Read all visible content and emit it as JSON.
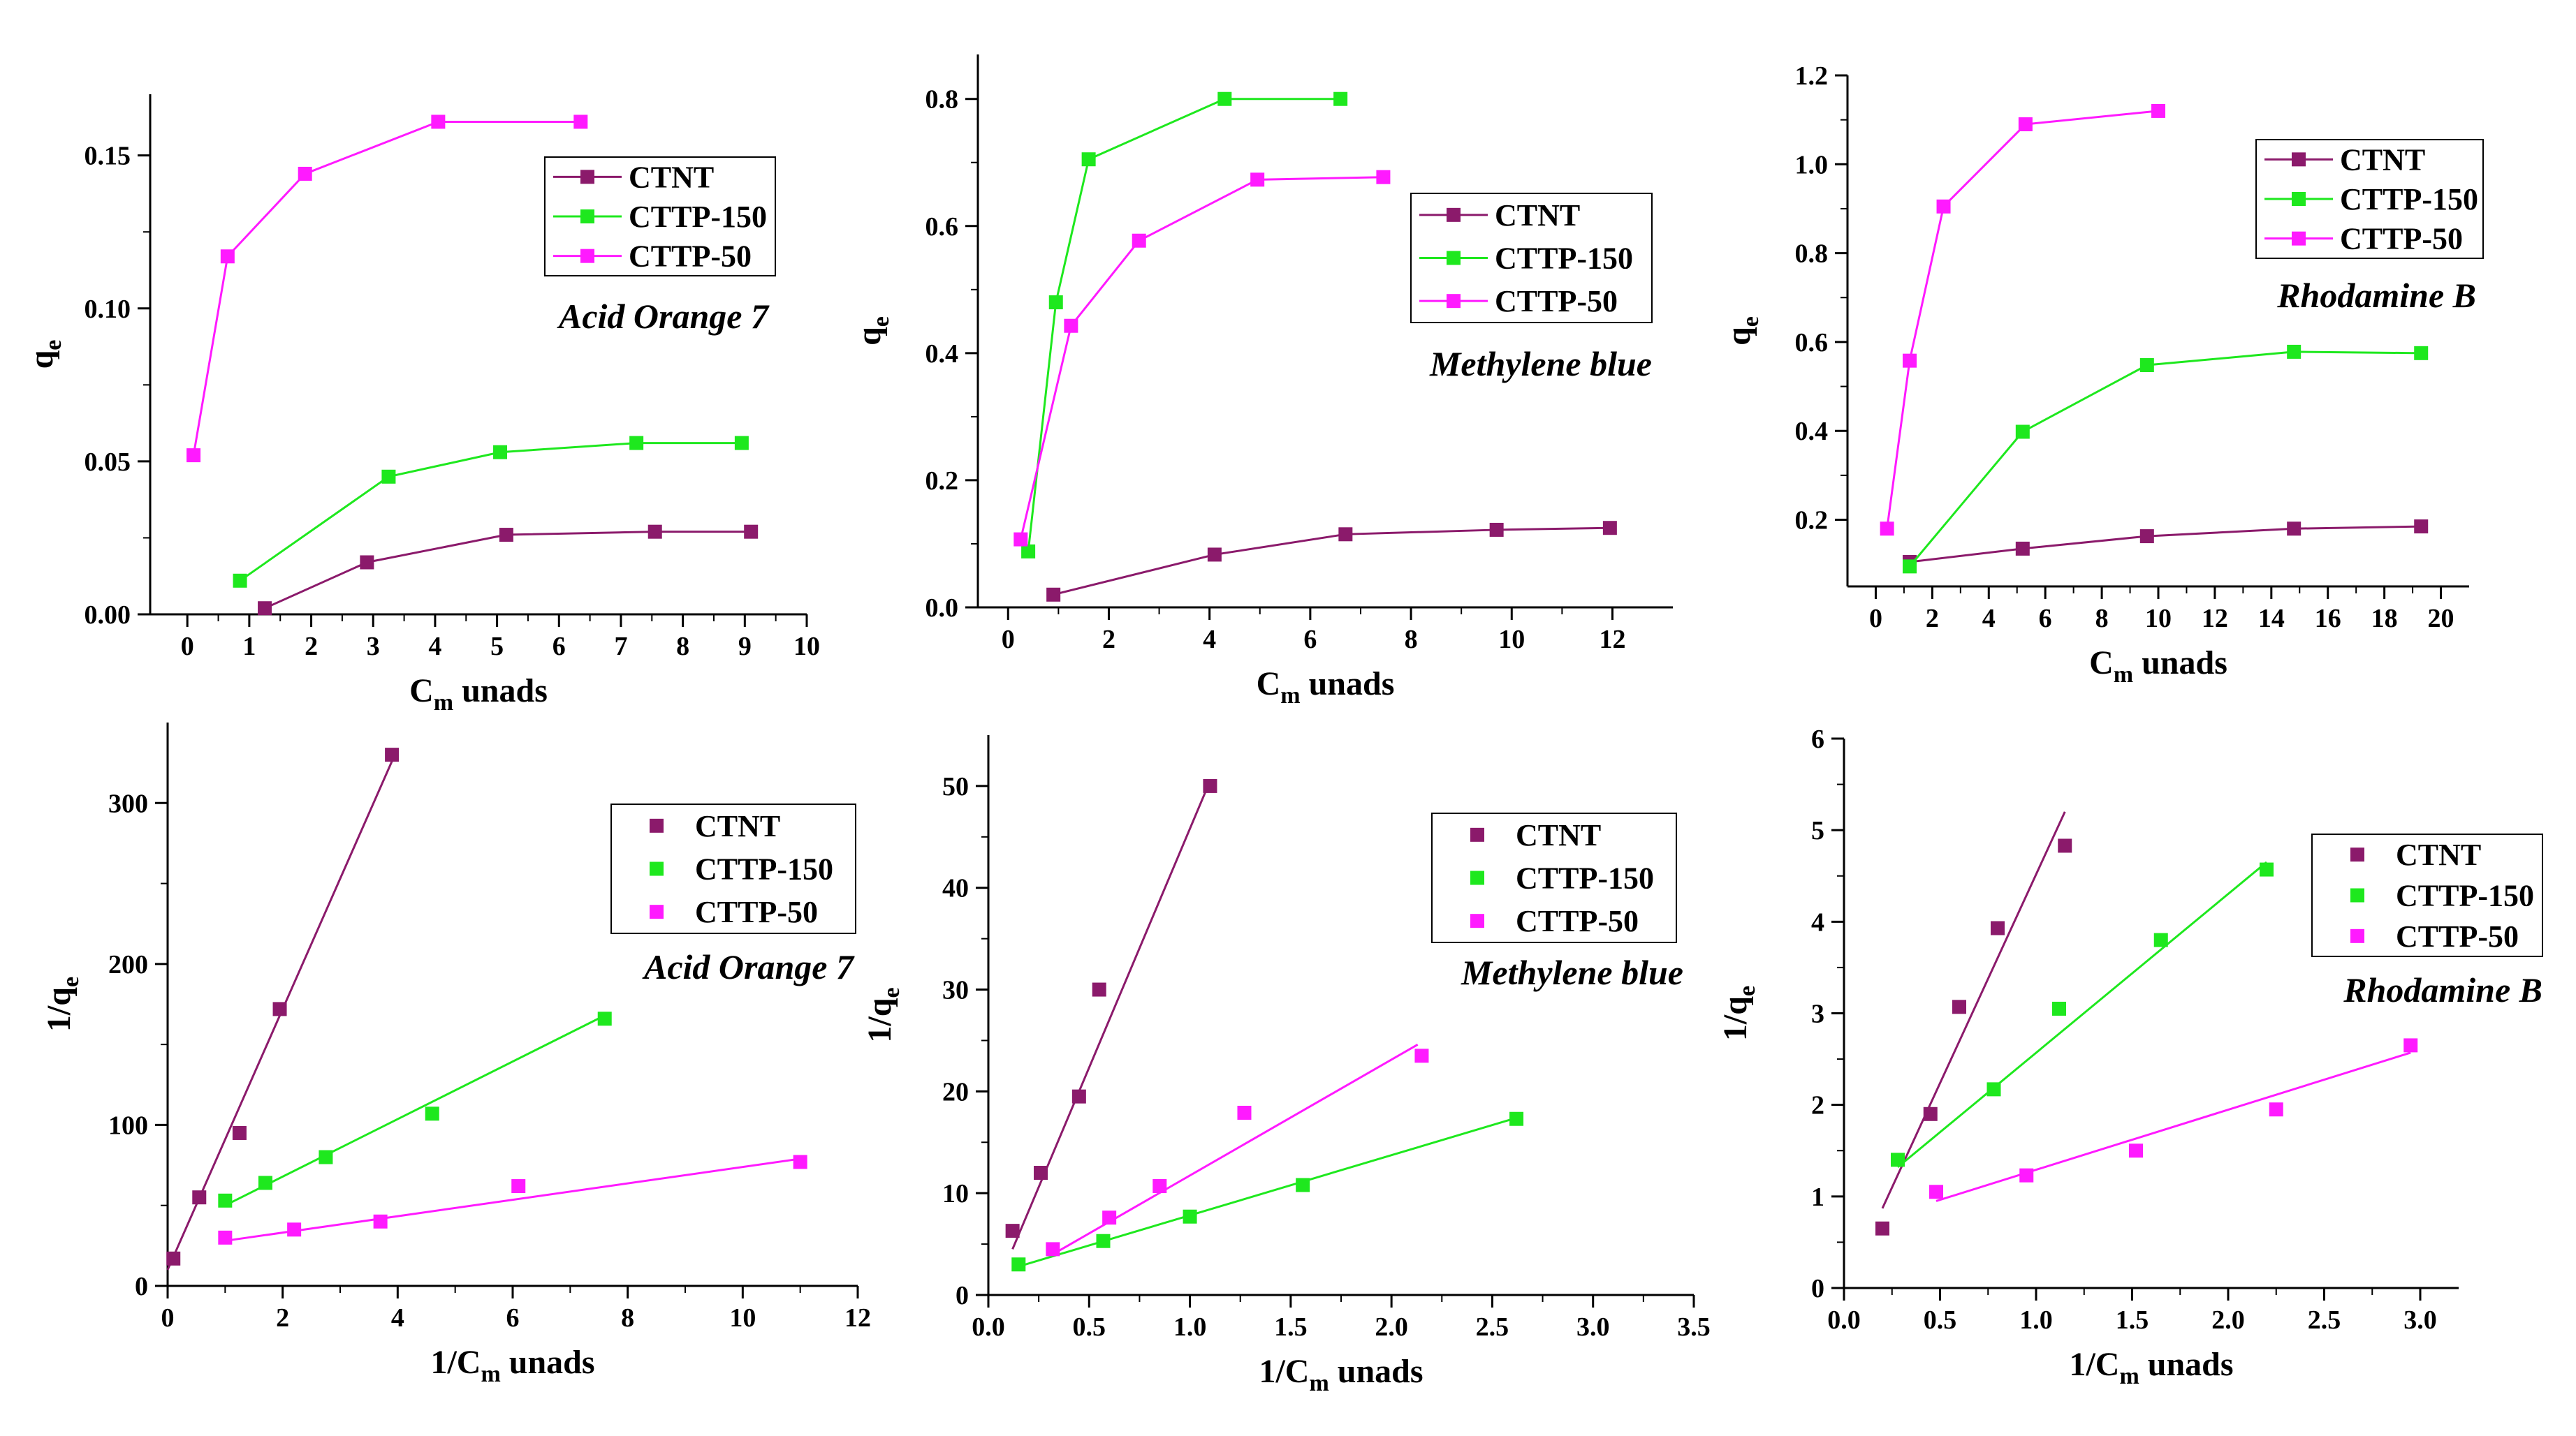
{
  "chart_data": [
    {
      "type": "line",
      "panel": "top-left",
      "title": "Acid Orange 7",
      "xlabel": "C",
      "xlabel_sub": "m",
      "xlabel_rest": " unads",
      "ylabel": "q",
      "ylabel_sub": "e",
      "ylabel_rest": "",
      "xlim": [
        -0.6,
        10
      ],
      "ylim": [
        0,
        0.17
      ],
      "xticks": [
        0,
        1,
        2,
        3,
        4,
        5,
        6,
        7,
        8,
        9,
        10
      ],
      "xtick_labels": [
        "0",
        "1",
        "2",
        "3",
        "4",
        "5",
        "6",
        "7",
        "8",
        "9",
        "10"
      ],
      "yticks": [
        0.0,
        0.05,
        0.1,
        0.15
      ],
      "ytick_labels": [
        "0.00",
        "0.05",
        "0.10",
        "0.15"
      ],
      "legend_position": "upper-right",
      "series": [
        {
          "name": "CTNT",
          "color": "#8b1a6b",
          "points": [
            [
              1.25,
              0.002
            ],
            [
              2.9,
              0.017
            ],
            [
              5.15,
              0.026
            ],
            [
              7.55,
              0.027
            ],
            [
              9.1,
              0.027
            ]
          ]
        },
        {
          "name": "CTTP-150",
          "color": "#1ee81e",
          "points": [
            [
              0.85,
              0.011
            ],
            [
              3.25,
              0.045
            ],
            [
              5.05,
              0.053
            ],
            [
              7.25,
              0.056
            ],
            [
              8.95,
              0.056
            ]
          ]
        },
        {
          "name": "CTTP-50",
          "color": "#ff1aff",
          "points": [
            [
              0.1,
              0.052
            ],
            [
              0.65,
              0.117
            ],
            [
              1.9,
              0.144
            ],
            [
              4.05,
              0.161
            ],
            [
              6.35,
              0.161
            ]
          ]
        }
      ]
    },
    {
      "type": "line",
      "panel": "top-middle",
      "title": "Methylene blue",
      "xlabel": "C",
      "xlabel_sub": "m",
      "xlabel_rest": " unads",
      "ylabel": "q",
      "ylabel_sub": "e",
      "ylabel_rest": "",
      "xlim": [
        -0.6,
        13.2
      ],
      "ylim": [
        0,
        0.87
      ],
      "xticks": [
        0,
        2,
        4,
        6,
        8,
        10,
        12
      ],
      "xtick_labels": [
        "0",
        "2",
        "4",
        "6",
        "8",
        "10",
        "12"
      ],
      "yticks": [
        0.0,
        0.2,
        0.4,
        0.6,
        0.8
      ],
      "ytick_labels": [
        "0.0",
        "0.2",
        "0.4",
        "0.6",
        "0.8"
      ],
      "legend_position": "right",
      "series": [
        {
          "name": "CTNT",
          "color": "#8b1a6b",
          "points": [
            [
              0.9,
              0.02
            ],
            [
              4.1,
              0.083
            ],
            [
              6.7,
              0.115
            ],
            [
              9.7,
              0.122
            ],
            [
              11.95,
              0.125
            ]
          ]
        },
        {
          "name": "CTTP-150",
          "color": "#1ee81e",
          "points": [
            [
              0.4,
              0.088
            ],
            [
              0.95,
              0.48
            ],
            [
              1.6,
              0.705
            ],
            [
              4.3,
              0.8
            ],
            [
              6.6,
              0.8
            ]
          ]
        },
        {
          "name": "CTTP-50",
          "color": "#ff1aff",
          "points": [
            [
              0.25,
              0.107
            ],
            [
              1.25,
              0.443
            ],
            [
              2.6,
              0.577
            ],
            [
              4.95,
              0.673
            ],
            [
              7.45,
              0.677
            ]
          ]
        }
      ]
    },
    {
      "type": "line",
      "panel": "top-right",
      "title": "Rhodamine B",
      "xlabel": "C",
      "xlabel_sub": "m",
      "xlabel_rest": " unads",
      "ylabel": "q",
      "ylabel_sub": "e",
      "ylabel_rest": "",
      "xlim": [
        -1,
        21
      ],
      "ylim": [
        0.05,
        1.2
      ],
      "xticks": [
        0,
        2,
        4,
        6,
        8,
        10,
        12,
        14,
        16,
        18,
        20
      ],
      "xtick_labels": [
        "0",
        "2",
        "4",
        "6",
        "8",
        "10",
        "12",
        "14",
        "16",
        "18",
        "20"
      ],
      "yticks": [
        0.2,
        0.4,
        0.6,
        0.8,
        1.0,
        1.2
      ],
      "ytick_labels": [
        "0.2",
        "0.4",
        "0.6",
        "0.8",
        "1.0",
        "1.2"
      ],
      "legend_position": "upper-right",
      "series": [
        {
          "name": "CTNT",
          "color": "#8b1a6b",
          "points": [
            [
              1.2,
              0.105
            ],
            [
              5.2,
              0.135
            ],
            [
              9.6,
              0.163
            ],
            [
              14.8,
              0.18
            ],
            [
              19.3,
              0.185
            ]
          ]
        },
        {
          "name": "CTTP-150",
          "color": "#1ee81e",
          "points": [
            [
              1.2,
              0.095
            ],
            [
              5.2,
              0.398
            ],
            [
              9.6,
              0.548
            ],
            [
              14.8,
              0.578
            ],
            [
              19.3,
              0.575
            ]
          ]
        },
        {
          "name": "CTTP-50",
          "color": "#ff1aff",
          "points": [
            [
              0.4,
              0.18
            ],
            [
              1.2,
              0.558
            ],
            [
              2.4,
              0.905
            ],
            [
              5.3,
              1.09
            ],
            [
              10.0,
              1.12
            ]
          ]
        }
      ]
    },
    {
      "type": "scatter",
      "panel": "bottom-left",
      "title": "Acid Orange 7",
      "xlabel": "1/C",
      "xlabel_sub": "m",
      "xlabel_rest": " unads",
      "ylabel": "1/q",
      "ylabel_sub": "e",
      "ylabel_rest": "",
      "xlim": [
        0,
        12
      ],
      "ylim": [
        0,
        350
      ],
      "xticks": [
        0,
        2,
        4,
        6,
        8,
        10,
        12
      ],
      "xtick_labels": [
        "0",
        "2",
        "4",
        "6",
        "8",
        "10",
        "12"
      ],
      "yticks": [
        0,
        100,
        200,
        300
      ],
      "ytick_labels": [
        "0",
        "100",
        "200",
        "300"
      ],
      "legend_position": "upper-right",
      "series": [
        {
          "name": "CTNT",
          "color": "#8b1a6b",
          "points": [
            [
              0.1,
              17
            ],
            [
              0.55,
              55
            ],
            [
              1.25,
              95
            ],
            [
              1.95,
              172
            ],
            [
              3.9,
              330
            ]
          ],
          "fit": [
            [
              0.0,
              10
            ],
            [
              4.0,
              334
            ]
          ]
        },
        {
          "name": "CTTP-150",
          "color": "#1ee81e",
          "points": [
            [
              1.0,
              53
            ],
            [
              1.7,
              64
            ],
            [
              2.75,
              80
            ],
            [
              4.6,
              107
            ],
            [
              7.6,
              166
            ]
          ],
          "fit": [
            [
              1.0,
              50
            ],
            [
              7.6,
              168
            ]
          ]
        },
        {
          "name": "CTTP-50",
          "color": "#ff1aff",
          "points": [
            [
              1.0,
              30
            ],
            [
              2.2,
              35
            ],
            [
              3.7,
              40
            ],
            [
              6.1,
              62
            ],
            [
              11.0,
              77
            ]
          ],
          "fit": [
            [
              1.0,
              28
            ],
            [
              11.0,
              79
            ]
          ]
        }
      ]
    },
    {
      "type": "scatter",
      "panel": "bottom-middle",
      "title": "Methylene blue",
      "xlabel": "1/C",
      "xlabel_sub": "m",
      "xlabel_rest": " unads",
      "ylabel": "1/q",
      "ylabel_sub": "e",
      "ylabel_rest": "",
      "xlim": [
        0,
        3.5
      ],
      "ylim": [
        0,
        55
      ],
      "xticks": [
        0.0,
        0.5,
        1.0,
        1.5,
        2.0,
        2.5,
        3.0,
        3.5
      ],
      "xtick_labels": [
        "0.0",
        "0.5",
        "1.0",
        "1.5",
        "2.0",
        "2.5",
        "3.0",
        "3.5"
      ],
      "yticks": [
        0,
        10,
        20,
        30,
        40,
        50
      ],
      "ytick_labels": [
        "0",
        "10",
        "20",
        "30",
        "40",
        "50"
      ],
      "legend_position": "upper-right",
      "series": [
        {
          "name": "CTNT",
          "color": "#8b1a6b",
          "points": [
            [
              0.12,
              6.3
            ],
            [
              0.26,
              12
            ],
            [
              0.45,
              19.5
            ],
            [
              0.55,
              30
            ],
            [
              1.1,
              50
            ]
          ],
          "fit": [
            [
              0.12,
              4.5
            ],
            [
              1.1,
              50.5
            ]
          ]
        },
        {
          "name": "CTTP-150",
          "color": "#1ee81e",
          "points": [
            [
              0.15,
              3
            ],
            [
              0.57,
              5.3
            ],
            [
              1.0,
              7.7
            ],
            [
              1.56,
              10.8
            ],
            [
              2.62,
              17.3
            ]
          ],
          "fit": [
            [
              0.15,
              2.8
            ],
            [
              2.62,
              17.4
            ]
          ]
        },
        {
          "name": "CTTP-50",
          "color": "#ff1aff",
          "points": [
            [
              0.32,
              4.5
            ],
            [
              0.6,
              7.6
            ],
            [
              0.85,
              10.7
            ],
            [
              1.27,
              17.9
            ],
            [
              2.15,
              23.5
            ]
          ],
          "fit": [
            [
              0.32,
              4.0
            ],
            [
              2.13,
              24.6
            ]
          ]
        }
      ]
    },
    {
      "type": "scatter",
      "panel": "bottom-right",
      "title": "Rhodamine B",
      "xlabel": "1/C",
      "xlabel_sub": "m",
      "xlabel_rest": " unads",
      "ylabel": "1/q",
      "ylabel_sub": "e",
      "ylabel_rest": "",
      "xlim": [
        0,
        3.2
      ],
      "ylim": [
        0,
        6
      ],
      "xticks": [
        0.0,
        0.5,
        1.0,
        1.5,
        2.0,
        2.5,
        3.0
      ],
      "xtick_labels": [
        "0.0",
        "0.5",
        "1.0",
        "1.5",
        "2.0",
        "2.5",
        "3.0"
      ],
      "yticks": [
        0,
        1,
        2,
        3,
        4,
        5,
        6
      ],
      "ytick_labels": [
        "0",
        "1",
        "2",
        "3",
        "4",
        "5",
        "6"
      ],
      "legend_position": "upper-right",
      "series": [
        {
          "name": "CTNT",
          "color": "#8b1a6b",
          "points": [
            [
              0.2,
              0.65
            ],
            [
              0.45,
              1.9
            ],
            [
              0.6,
              3.07
            ],
            [
              0.8,
              3.93
            ],
            [
              1.15,
              4.83
            ]
          ],
          "fit": [
            [
              0.2,
              0.87
            ],
            [
              1.15,
              5.2
            ]
          ]
        },
        {
          "name": "CTTP-150",
          "color": "#1ee81e",
          "points": [
            [
              0.28,
              1.4
            ],
            [
              0.78,
              2.17
            ],
            [
              1.12,
              3.05
            ],
            [
              1.65,
              3.8
            ],
            [
              2.2,
              4.57
            ]
          ],
          "fit": [
            [
              0.28,
              1.32
            ],
            [
              2.2,
              4.65
            ]
          ]
        },
        {
          "name": "CTTP-50",
          "color": "#ff1aff",
          "points": [
            [
              0.48,
              1.05
            ],
            [
              0.95,
              1.23
            ],
            [
              1.52,
              1.5
            ],
            [
              2.25,
              1.95
            ],
            [
              2.95,
              2.65
            ]
          ],
          "fit": [
            [
              0.48,
              0.95
            ],
            [
              2.95,
              2.57
            ]
          ]
        }
      ]
    }
  ]
}
